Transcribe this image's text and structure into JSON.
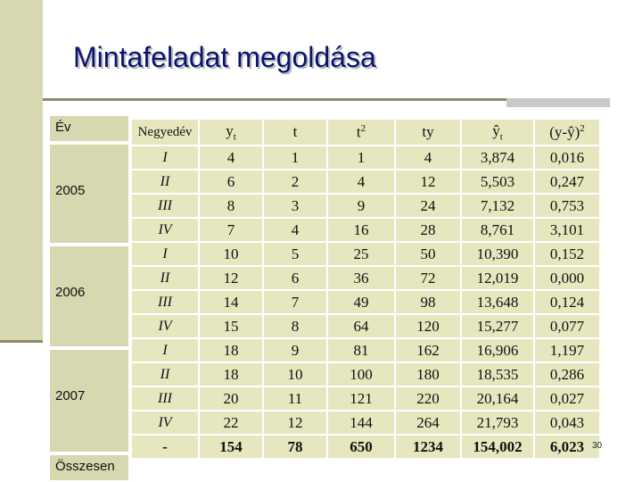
{
  "title": "Mintafeladat megoldása",
  "ev_column": {
    "header": "Év",
    "years": [
      "2005",
      "2006",
      "2007"
    ],
    "total_label": "Összesen"
  },
  "table": {
    "headers": {
      "quarter": "Negyedév",
      "y_base": "y",
      "y_sub": "t",
      "t": "t",
      "t2_base": "t",
      "t2_sup": "2",
      "ty": "ty",
      "yhat_base": "ŷ",
      "yhat_sub": "t",
      "resid_base": "(y-ŷ)",
      "resid_sup": "2"
    },
    "rows": [
      [
        "I",
        "4",
        "1",
        "1",
        "4",
        "3,874",
        "0,016"
      ],
      [
        "II",
        "6",
        "2",
        "4",
        "12",
        "5,503",
        "0,247"
      ],
      [
        "III",
        "8",
        "3",
        "9",
        "24",
        "7,132",
        "0,753"
      ],
      [
        "IV",
        "7",
        "4",
        "16",
        "28",
        "8,761",
        "3,101"
      ],
      [
        "I",
        "10",
        "5",
        "25",
        "50",
        "10,390",
        "0,152"
      ],
      [
        "II",
        "12",
        "6",
        "36",
        "72",
        "12,019",
        "0,000"
      ],
      [
        "III",
        "14",
        "7",
        "49",
        "98",
        "13,648",
        "0,124"
      ],
      [
        "IV",
        "15",
        "8",
        "64",
        "120",
        "15,277",
        "0,077"
      ],
      [
        "I",
        "18",
        "9",
        "81",
        "162",
        "16,906",
        "1,197"
      ],
      [
        "II",
        "18",
        "10",
        "100",
        "180",
        "18,535",
        "0,286"
      ],
      [
        "III",
        "20",
        "11",
        "121",
        "220",
        "20,164",
        "0,027"
      ],
      [
        "IV",
        "22",
        "12",
        "144",
        "264",
        "21,793",
        "0,043"
      ]
    ],
    "total": [
      "-",
      "154",
      "78",
      "650",
      "1234",
      "154,002",
      "6,023"
    ]
  },
  "page_number": "30"
}
